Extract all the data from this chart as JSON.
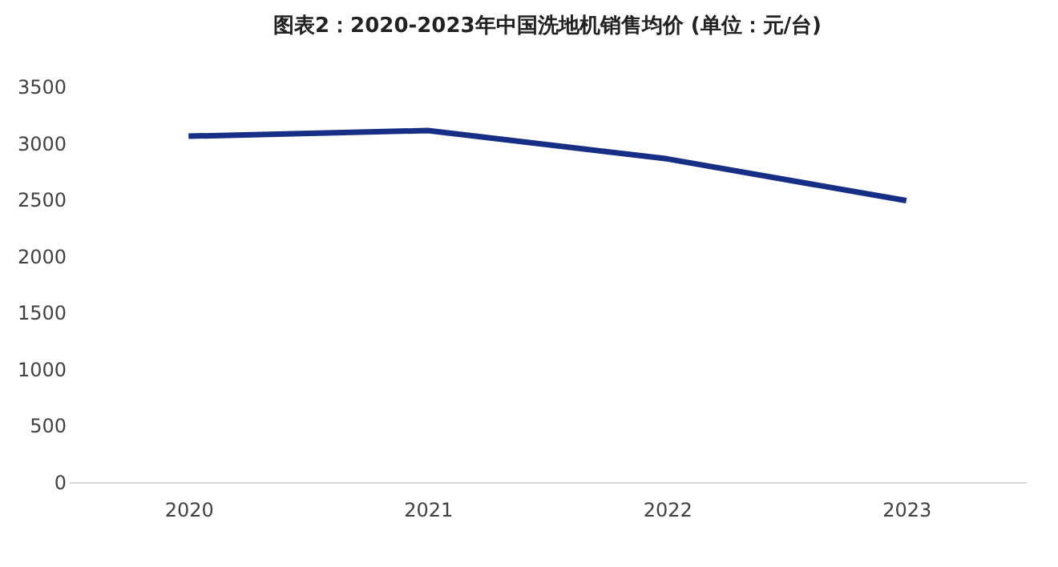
{
  "chart_data": {
    "type": "line",
    "title": "图表2：2020-2023年中国洗地机销售均价 (单位：元/台)",
    "categories": [
      "2020",
      "2021",
      "2022",
      "2023"
    ],
    "series": [
      {
        "color": "#162e86",
        "values": [
          3060,
          3110,
          2860,
          2490
        ]
      }
    ],
    "ylim": [
      0,
      3500
    ],
    "yticks": [
      0,
      500,
      1000,
      1500,
      2000,
      2500,
      3000,
      3500
    ],
    "grid": false,
    "marker": "none",
    "line_style": "solid"
  }
}
